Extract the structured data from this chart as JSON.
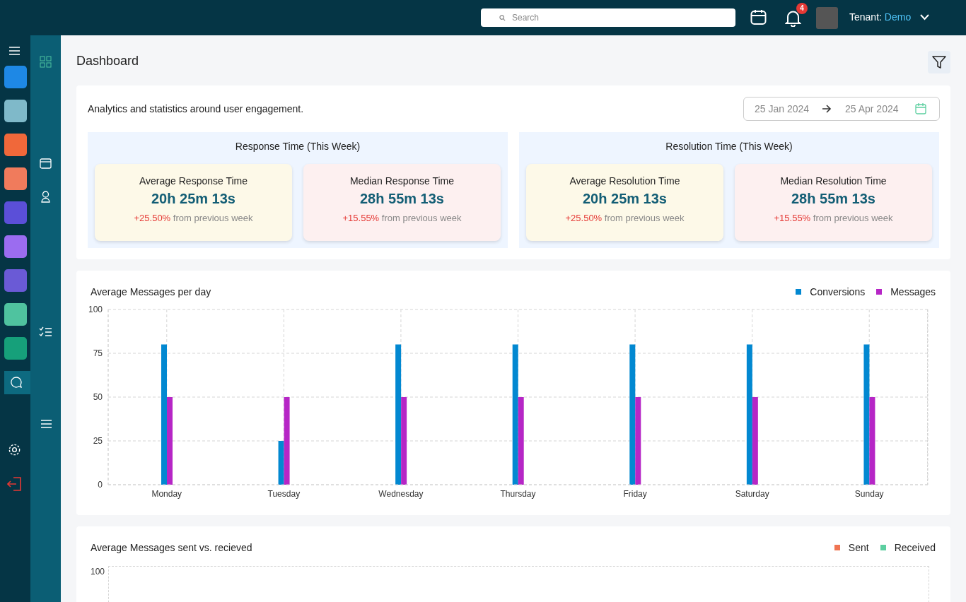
{
  "chart_data": [
    {
      "type": "other",
      "title": "Dashboard",
      "subtitle": "Analytics and statistics around user engagement.",
      "annotations": [
        "Search",
        "4",
        "Tenant:",
        "Demo",
        "25 Jan 2024",
        "25 Apr 2024",
        "Response Time (This Week)",
        "Average Response Time",
        "20h 25m 13s",
        "+25.50%",
        "from previous week",
        "Median Response Time",
        "28h 55m 13s",
        "+15.55%",
        "from previous week",
        "Resolution Time (This Week)",
        "Average Resolution Time",
        "20h 25m 13s",
        "+25.50%",
        "from previous week",
        "Median Resolution Time",
        "28h 55m 13s",
        "+15.55%",
        "from previous week"
      ]
    },
    {
      "type": "bar",
      "title": "Average Messages per day",
      "categories": [
        "Monday",
        "Tuesday",
        "Wednesday",
        "Thursday",
        "Friday",
        "Saturday",
        "Sunday"
      ],
      "series": [
        {
          "name": "Conversions",
          "color": "#0288d1",
          "values": [
            80,
            25,
            80,
            80,
            80,
            80,
            80
          ]
        },
        {
          "name": "Messages",
          "color": "#b626c6",
          "values": [
            50,
            50,
            50,
            50,
            50,
            50,
            50
          ]
        }
      ],
      "ylim": [
        0,
        100
      ],
      "yticks": [
        0,
        25,
        50,
        75,
        100
      ],
      "grid": true,
      "legend": "top right"
    },
    {
      "type": "other",
      "title": "Average Messages sent vs. recieved",
      "series": [
        {
          "name": "Sent",
          "color": "#f07553"
        },
        {
          "name": "Received",
          "color": "#5ccfa0"
        }
      ],
      "annotations": [
        "100"
      ]
    }
  ]
}
